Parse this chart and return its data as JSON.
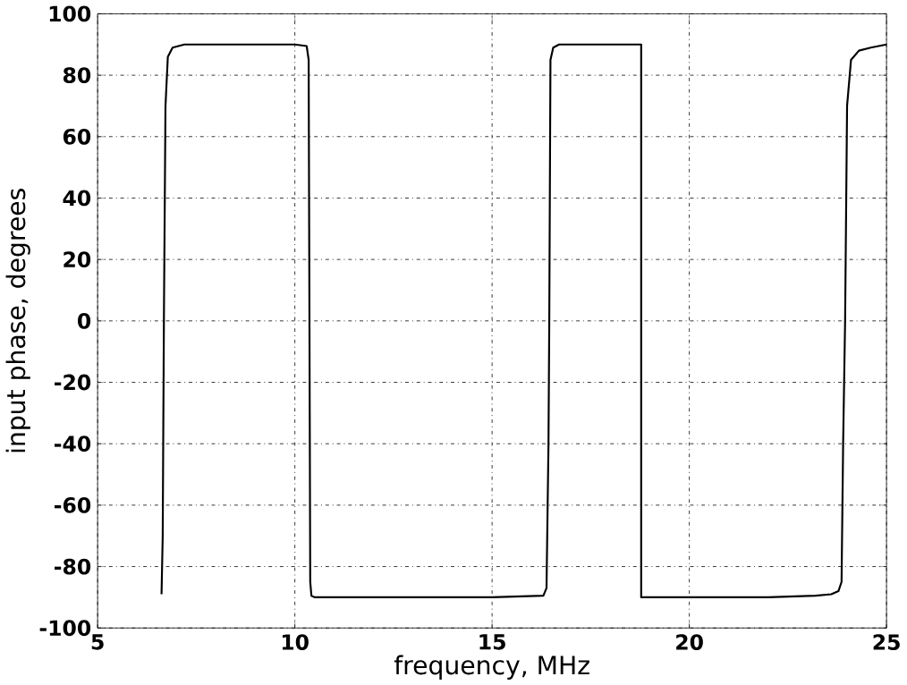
{
  "chart_data": {
    "type": "line",
    "xlabel": "frequency, MHz",
    "ylabel": "input phase, degrees",
    "xlim": [
      5,
      25
    ],
    "ylim": [
      -100,
      100
    ],
    "xticks": [
      5,
      10,
      15,
      20,
      25
    ],
    "yticks": [
      -100,
      -80,
      -60,
      -40,
      -20,
      0,
      20,
      40,
      60,
      80,
      100
    ],
    "grid": true,
    "marker": "none",
    "line_style": "solid",
    "series": [
      {
        "color": "#000000",
        "x": [
          6.62,
          6.65,
          6.68,
          6.72,
          6.78,
          6.9,
          7.2,
          8.5,
          10.0,
          10.3,
          10.35,
          10.37,
          10.39,
          10.42,
          10.5,
          11.5,
          13.0,
          15.0,
          16.3,
          16.38,
          16.43,
          16.45,
          16.48,
          16.55,
          16.7,
          17.5,
          18.78,
          18.78,
          18.9,
          20.0,
          22.0,
          23.2,
          23.6,
          23.78,
          23.86,
          23.9,
          23.95,
          24.0,
          24.1,
          24.3,
          24.6,
          25.0
        ],
        "values": [
          -89,
          -70,
          0,
          70,
          86,
          89,
          90,
          90,
          90,
          89.5,
          85,
          0,
          -85,
          -89.5,
          -90,
          -90,
          -90,
          -90,
          -89.5,
          -87,
          -40,
          0,
          85,
          89,
          90,
          90,
          90,
          -90,
          -90,
          -90,
          -90,
          -89.5,
          -89,
          -88,
          -85,
          -40,
          0,
          70,
          85,
          88,
          89,
          90
        ]
      }
    ]
  }
}
